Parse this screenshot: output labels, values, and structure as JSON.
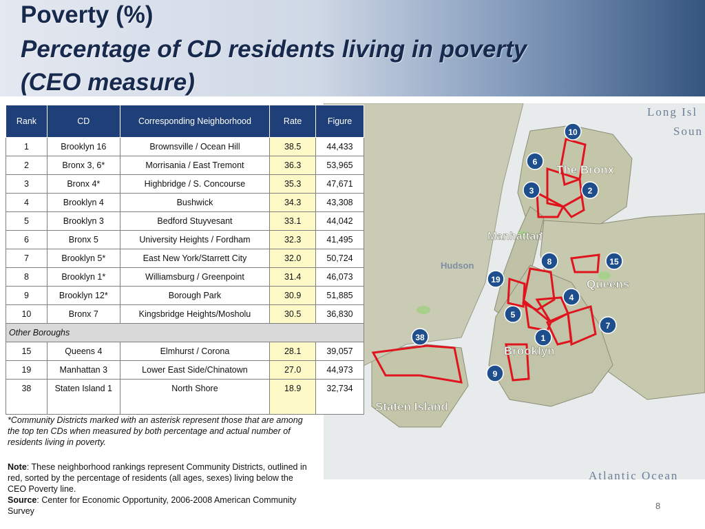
{
  "title": {
    "line1": "Poverty (%)",
    "line2": "Percentage of CD residents living in poverty",
    "line3": "(CEO measure)"
  },
  "table": {
    "headers": {
      "rank": "Rank",
      "cd": "CD",
      "neighborhood": "Corresponding Neighborhood",
      "rate": "Rate",
      "figure": "Figure"
    },
    "rows": [
      {
        "rank": "1",
        "cd": "Brooklyn 16",
        "neighborhood": "Brownsville / Ocean Hill",
        "rate": "38.5",
        "figure": "44,433"
      },
      {
        "rank": "2",
        "cd": "Bronx 3, 6*",
        "neighborhood": "Morrisania / East Tremont",
        "rate": "36.3",
        "figure": "53,965"
      },
      {
        "rank": "3",
        "cd": "Bronx 4*",
        "neighborhood": "Highbridge / S. Concourse",
        "rate": "35.3",
        "figure": "47,671"
      },
      {
        "rank": "4",
        "cd": "Brooklyn 4",
        "neighborhood": "Bushwick",
        "rate": "34.3",
        "figure": "43,308"
      },
      {
        "rank": "5",
        "cd": "Brooklyn 3",
        "neighborhood": "Bedford Stuyvesant",
        "rate": "33.1",
        "figure": "44,042"
      },
      {
        "rank": "6",
        "cd": "Bronx 5",
        "neighborhood": "University Heights / Fordham",
        "rate": "32.3",
        "figure": "41,495"
      },
      {
        "rank": "7",
        "cd": "Brooklyn 5*",
        "neighborhood": "East New York/Starrett City",
        "rate": "32.0",
        "figure": "50,724"
      },
      {
        "rank": "8",
        "cd": "Brooklyn 1*",
        "neighborhood": "Williamsburg / Greenpoint",
        "rate": "31.4",
        "figure": "46,073"
      },
      {
        "rank": "9",
        "cd": "Brooklyn 12*",
        "neighborhood": "Borough Park",
        "rate": "30.9",
        "figure": "51,885"
      },
      {
        "rank": "10",
        "cd": "Bronx 7",
        "neighborhood": "Kingsbridge Heights/Mosholu",
        "rate": "30.5",
        "figure": "36,830"
      }
    ],
    "other_label": "Other Boroughs",
    "other_rows": [
      {
        "rank": "15",
        "cd": "Queens 4",
        "neighborhood": "Elmhurst / Corona",
        "rate": "28.1",
        "figure": "39,057"
      },
      {
        "rank": "19",
        "cd": "Manhattan 3",
        "neighborhood": "Lower East Side/Chinatown",
        "rate": "27.0",
        "figure": "44,973"
      },
      {
        "rank": "38",
        "cd": "Staten Island 1",
        "neighborhood": "North Shore",
        "rate": "18.9",
        "figure": "32,734"
      }
    ]
  },
  "footnote": "*Community Districts marked with an asterisk represent those that are among the top ten CDs when measured by both percentage  and actual number of residents living in poverty.",
  "note": {
    "label": "Note",
    "text": ": These neighborhood rankings represent Community Districts, outlined in red, sorted by  the percentage of residents (all ages, sexes) living below the CEO Poverty line."
  },
  "source": {
    "label": "Source",
    "text": ": Center for Economic Opportunity, 2006-2008 American Community Survey"
  },
  "map": {
    "labels": {
      "long_island": "Long Isl",
      "sound": "Soun",
      "bronx": "The Bronx",
      "manhattan": "Manhattan",
      "hudson": "Hudson",
      "queens": "Queens",
      "brooklyn": "Brooklyn",
      "staten_island": "Staten Island",
      "atlantic": "Atlantic Ocean"
    },
    "markers": [
      "10",
      "6",
      "3",
      "2",
      "8",
      "15",
      "19",
      "4",
      "5",
      "7",
      "38",
      "1",
      "9"
    ]
  },
  "page_number": "8",
  "colors": {
    "header_bg": "#1f3f78",
    "rate_highlight": "#fdfac8",
    "outline_red": "#e0141e",
    "marker_bg": "#1f4e8c",
    "land": "#c4c7aa",
    "water": "#e9ecec"
  }
}
